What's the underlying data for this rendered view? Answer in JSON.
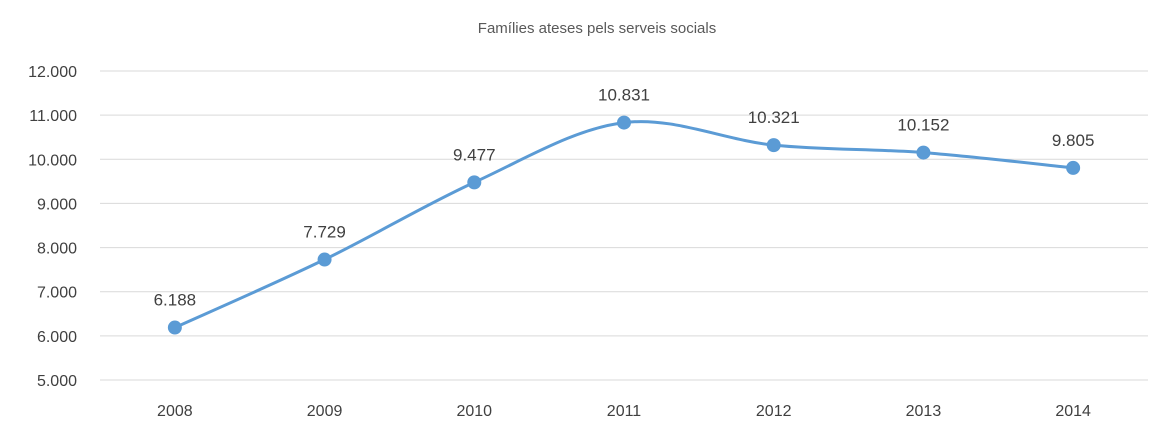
{
  "chart_data": {
    "type": "line",
    "title": "Famílies ateses pels serveis socials",
    "xlabel": "",
    "ylabel": "",
    "categories": [
      "2008",
      "2009",
      "2010",
      "2011",
      "2012",
      "2013",
      "2014"
    ],
    "series": [
      {
        "values": [
          6188,
          7729,
          9477,
          10831,
          10321,
          10152,
          9805
        ],
        "data_labels": [
          "6.188",
          "7.729",
          "9.477",
          "10.831",
          "10.321",
          "10.152",
          "9.805"
        ],
        "color": "#5b9bd5"
      }
    ],
    "ylim": [
      5000,
      12000
    ],
    "yticks": [
      5000,
      6000,
      7000,
      8000,
      9000,
      10000,
      11000,
      12000
    ],
    "ytick_labels": [
      "5.000",
      "6.000",
      "7.000",
      "8.000",
      "9.000",
      "10.000",
      "11.000",
      "12.000"
    ],
    "grid": true,
    "legend": "none",
    "smooth": true
  }
}
